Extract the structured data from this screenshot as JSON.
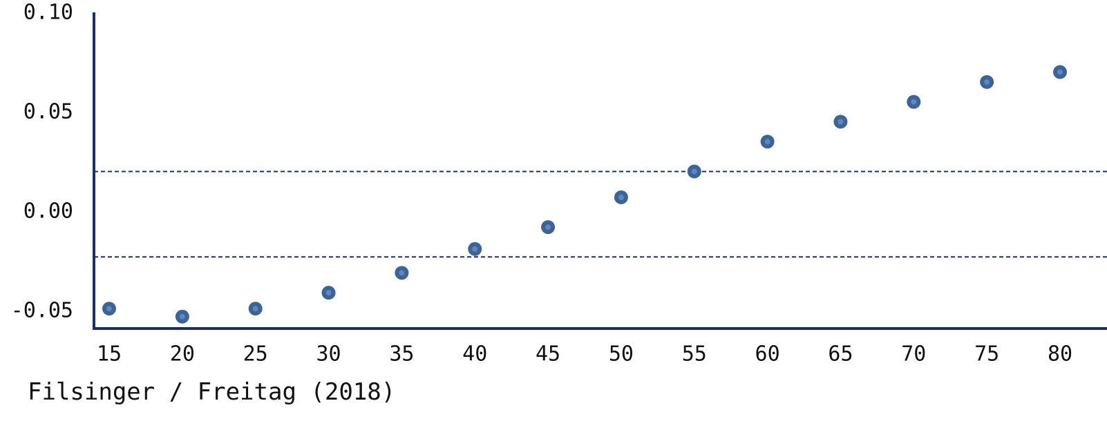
{
  "chart_data": {
    "type": "scatter",
    "title": "",
    "xlabel": "",
    "ylabel": "",
    "x_ticks": [
      15,
      20,
      25,
      30,
      35,
      40,
      45,
      50,
      55,
      60,
      65,
      70,
      75,
      80
    ],
    "y_ticks": [
      0.1,
      0.05,
      0.0,
      -0.05
    ],
    "y_tick_labels": [
      "0.10",
      "0.05",
      "0.00",
      "-0.05"
    ],
    "xlim": [
      14,
      81.5
    ],
    "ylim": [
      -0.059,
      0.1
    ],
    "grid": false,
    "series": [
      {
        "x": [
          15,
          20,
          25,
          30,
          35,
          40,
          45,
          50,
          55,
          60,
          65,
          70,
          75,
          80
        ],
        "y": [
          -0.049,
          -0.053,
          -0.049,
          -0.041,
          -0.031,
          -0.019,
          -0.008,
          0.007,
          0.02,
          0.035,
          0.045,
          0.055,
          0.065,
          0.07
        ]
      }
    ],
    "reference_lines": [
      0.02,
      -0.023
    ],
    "marker_color": "#3d6496",
    "marker_inner_color": "#5f86bd",
    "axis_color": "#1b2f66",
    "line_color": "#1b2f66"
  },
  "source": "Filsinger / Freitag (2018)"
}
